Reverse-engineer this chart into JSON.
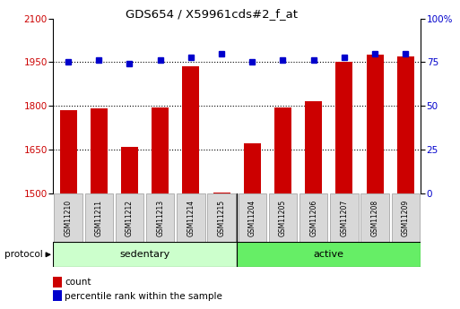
{
  "title": "GDS654 / X59961cds#2_f_at",
  "categories": [
    "GSM11210",
    "GSM11211",
    "GSM11212",
    "GSM11213",
    "GSM11214",
    "GSM11215",
    "GSM11204",
    "GSM11205",
    "GSM11206",
    "GSM11207",
    "GSM11208",
    "GSM11209"
  ],
  "red_values": [
    1785,
    1790,
    1660,
    1793,
    1935,
    1503,
    1670,
    1793,
    1815,
    1950,
    1975,
    1970
  ],
  "blue_values": [
    75,
    76,
    74,
    76,
    78,
    80,
    75,
    76,
    76,
    78,
    80,
    80
  ],
  "ylim_left": [
    1500,
    2100
  ],
  "ylim_right": [
    0,
    100
  ],
  "yticks_left": [
    1500,
    1650,
    1800,
    1950,
    2100
  ],
  "yticks_right": [
    0,
    25,
    50,
    75,
    100
  ],
  "ytick_labels_right": [
    "0",
    "25",
    "50",
    "75",
    "100%"
  ],
  "hlines": [
    1650,
    1800,
    1950
  ],
  "groups": [
    {
      "label": "sedentary",
      "start": 0,
      "end": 6,
      "color": "#ccffcc"
    },
    {
      "label": "active",
      "start": 6,
      "end": 12,
      "color": "#66ee66"
    }
  ],
  "protocol_label": "protocol",
  "red_color": "#cc0000",
  "blue_color": "#0000cc",
  "bar_width": 0.55,
  "tick_box_color": "#d8d8d8",
  "legend_items": [
    {
      "label": "count",
      "color": "#cc0000"
    },
    {
      "label": "percentile rank within the sample",
      "color": "#0000cc"
    }
  ]
}
